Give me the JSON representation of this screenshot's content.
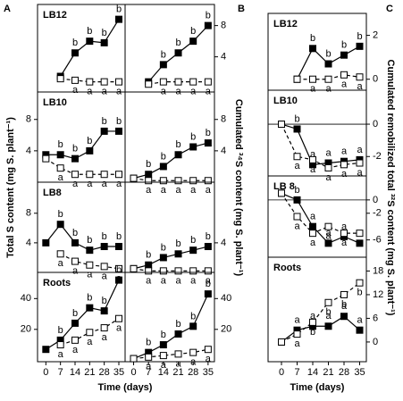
{
  "figure": {
    "panel_letters": [
      "A",
      "B",
      "C"
    ],
    "y_label_a": "Total S content (mg S. plant⁻¹)",
    "y_label_b": "Cumulated ³⁴S content (mg S. plant⁻¹)",
    "y_label_c": "Cumulated remobilized total ³²S content (mg S. plant⁻¹)",
    "x_label_a": "Time (days)",
    "x_label_c": "Time (days)"
  },
  "chart_data": [
    {
      "type": "line",
      "label": "LB12",
      "x": [
        0,
        7,
        14,
        21,
        28,
        35
      ],
      "xlim": [
        -4,
        38
      ],
      "ylim": [
        -0.5,
        10.7
      ],
      "yticks": [],
      "series": [
        {
          "marker": "filled",
          "color": "#000",
          "values": [
            null,
            1.5,
            4.5,
            6,
            5.8,
            8.8
          ],
          "letters": [
            null,
            null,
            "b",
            "b",
            "b",
            "b"
          ]
        },
        {
          "marker": "open",
          "color": "#000",
          "values": [
            null,
            1.2,
            1,
            0.8,
            0.8,
            0.8
          ],
          "letters": [
            null,
            null,
            "a",
            "a",
            "a",
            "a"
          ]
        }
      ]
    },
    {
      "type": "line",
      "label": "LB10",
      "x": [
        0,
        7,
        14,
        21,
        28,
        35
      ],
      "xlim": [
        -4,
        38
      ],
      "ylim": [
        0,
        11.5
      ],
      "yticks": [
        4,
        8
      ],
      "series": [
        {
          "marker": "filled",
          "color": "#000",
          "values": [
            3.5,
            3.5,
            3,
            4,
            6.5,
            6.5
          ],
          "letters": [
            null,
            "b",
            "b",
            "b",
            "b",
            "b"
          ]
        },
        {
          "marker": "open",
          "color": "#000",
          "values": [
            3,
            1.8,
            1,
            1,
            1,
            1
          ],
          "letters": [
            null,
            "a",
            "a",
            "a",
            "a",
            "a"
          ]
        }
      ]
    },
    {
      "type": "line",
      "label": "LB8",
      "x": [
        0,
        7,
        14,
        21,
        28,
        35
      ],
      "xlim": [
        -4,
        38
      ],
      "ylim": [
        0,
        12.2
      ],
      "yticks": [
        4,
        8
      ],
      "series": [
        {
          "marker": "filled",
          "color": "#000",
          "values": [
            4,
            6.5,
            4,
            3,
            3.5,
            3.5
          ],
          "letters": [
            null,
            "b",
            "b",
            "b",
            "b",
            "b"
          ]
        },
        {
          "marker": "open",
          "color": "#000",
          "values": [
            null,
            2.5,
            1.5,
            1,
            0.8,
            0.5
          ],
          "letters": [
            null,
            "a",
            "a",
            "a",
            "a",
            "a"
          ]
        }
      ]
    },
    {
      "type": "line",
      "label": "Roots",
      "x": [
        0,
        7,
        14,
        21,
        28,
        35
      ],
      "xlim": [
        -4,
        38
      ],
      "ylim": [
        -1,
        57
      ],
      "yticks": [
        20,
        40
      ],
      "xticks": [
        0,
        7,
        14,
        21,
        28,
        35
      ],
      "series": [
        {
          "marker": "filled",
          "color": "#000",
          "values": [
            7,
            13,
            24,
            34,
            32,
            52
          ],
          "letters": [
            null,
            "b",
            "b",
            "b",
            "b",
            "b"
          ]
        },
        {
          "marker": "open",
          "color": "#000",
          "values": [
            null,
            10,
            13,
            18,
            21,
            27
          ],
          "letters": [
            null,
            "a",
            "a",
            "a",
            "a",
            "a"
          ]
        }
      ]
    },
    {
      "type": "line",
      "x": [
        0,
        7,
        14,
        21,
        28,
        35
      ],
      "xlim": [
        -4,
        38
      ],
      "ylim": [
        -0.5,
        10.7
      ],
      "yticks": [
        4,
        8
      ],
      "series": [
        {
          "marker": "filled",
          "color": "#000",
          "values": [
            null,
            0.8,
            3,
            4.5,
            6,
            8
          ],
          "letters": [
            null,
            null,
            "b",
            "b",
            "b",
            "b"
          ]
        },
        {
          "marker": "open",
          "color": "#000",
          "values": [
            null,
            0.5,
            0.8,
            0.8,
            0.8,
            0.8
          ],
          "letters": [
            null,
            null,
            "a",
            "a",
            "a",
            "a"
          ]
        }
      ]
    },
    {
      "type": "line",
      "x": [
        0,
        7,
        14,
        21,
        28,
        35
      ],
      "xlim": [
        -4,
        38
      ],
      "ylim": [
        0,
        11.5
      ],
      "yticks": [
        4,
        8
      ],
      "series": [
        {
          "marker": "filled",
          "color": "#000",
          "values": [
            0.5,
            1,
            2,
            3.5,
            4.5,
            5
          ],
          "letters": [
            null,
            "b",
            "b",
            "b",
            "b",
            "b"
          ]
        },
        {
          "marker": "open",
          "color": "#000",
          "values": [
            0.5,
            0.2,
            0.2,
            0.2,
            0.2,
            0.2
          ],
          "letters": [
            null,
            "a",
            "a",
            "a",
            "a",
            "a"
          ]
        }
      ]
    },
    {
      "type": "line",
      "x": [
        0,
        7,
        14,
        21,
        28,
        35
      ],
      "xlim": [
        -4,
        38
      ],
      "ylim": [
        0,
        12.2
      ],
      "yticks": [
        4
      ],
      "series": [
        {
          "marker": "filled",
          "color": "#000",
          "values": [
            0.5,
            1,
            2,
            2.5,
            3,
            3.5
          ],
          "letters": [
            null,
            "b",
            "b",
            "b",
            "b",
            "b"
          ]
        },
        {
          "marker": "open",
          "color": "#000",
          "values": [
            0.5,
            0.2,
            0.2,
            0.2,
            0.2,
            0.2
          ],
          "letters": [
            null,
            "a",
            "a",
            "a",
            "a",
            "a"
          ]
        }
      ]
    },
    {
      "type": "line",
      "x": [
        0,
        7,
        14,
        21,
        28,
        35
      ],
      "xlim": [
        -4,
        38
      ],
      "ylim": [
        -1,
        57
      ],
      "yticks": [
        20,
        40
      ],
      "xticks": [
        0,
        7,
        14,
        21,
        28,
        35
      ],
      "series": [
        {
          "marker": "filled",
          "color": "#000",
          "values": [
            1,
            5,
            10,
            17,
            22,
            43
          ],
          "letters": [
            null,
            "b",
            "b",
            "b",
            "b",
            "b"
          ]
        },
        {
          "marker": "open",
          "color": "#000",
          "values": [
            1,
            2,
            3,
            4,
            5,
            7
          ],
          "letters": [
            null,
            "a",
            "a",
            "a",
            "a",
            "a"
          ]
        }
      ]
    },
    {
      "type": "line",
      "label": "LB12",
      "x": [
        0,
        7,
        14,
        21,
        28,
        35
      ],
      "xlim": [
        -6,
        38
      ],
      "ylim": [
        -0.5,
        3
      ],
      "yticks": [
        0,
        2
      ],
      "series": [
        {
          "marker": "filled",
          "color": "#000",
          "values": [
            null,
            0,
            1.4,
            0.7,
            1.1,
            1.5
          ],
          "letters": [
            null,
            null,
            "b",
            "b",
            "b",
            "b"
          ]
        },
        {
          "marker": "open",
          "color": "#000",
          "values": [
            null,
            0,
            0,
            0,
            0.2,
            0.1
          ],
          "letters": [
            null,
            null,
            "a",
            "a",
            "a",
            "a"
          ]
        }
      ]
    },
    {
      "type": "line",
      "label": "LB10",
      "x": [
        0,
        7,
        14,
        21,
        28,
        35
      ],
      "xlim": [
        -6,
        38
      ],
      "ylim": [
        -3.2,
        2.1
      ],
      "yticks": [
        -2,
        0
      ],
      "zero_line": true,
      "series": [
        {
          "marker": "filled",
          "color": "#000",
          "values": [
            0,
            -0.3,
            -2.5,
            -2.4,
            -2.3,
            -2.2
          ],
          "letters": [
            null,
            "b",
            "a",
            "a",
            "a",
            "a"
          ]
        },
        {
          "marker": "open",
          "color": "#000",
          "values": [
            0,
            -2,
            -2.2,
            -2.7,
            -2.5,
            -2.4
          ],
          "letters": [
            null,
            "a",
            "a",
            "a",
            "a",
            "a"
          ]
        }
      ]
    },
    {
      "type": "line",
      "label": "LB 8",
      "x": [
        0,
        7,
        14,
        21,
        28,
        35
      ],
      "xlim": [
        -6,
        38
      ],
      "ylim": [
        -8.6,
        3.6
      ],
      "yticks": [
        -6,
        -2,
        0
      ],
      "zero_line": true,
      "series": [
        {
          "marker": "filled",
          "color": "#000",
          "values": [
            1,
            0,
            -4,
            -6.5,
            -5.5,
            -6.5
          ],
          "letters": [
            null,
            "b",
            "a",
            "a",
            "a",
            "a"
          ]
        },
        {
          "marker": "open",
          "color": "#000",
          "values": [
            1,
            -2.5,
            -5,
            -4,
            -5,
            -5
          ],
          "letters": [
            null,
            "a",
            "a",
            "a",
            "a",
            "a"
          ]
        }
      ]
    },
    {
      "type": "line",
      "label": "Roots",
      "x": [
        0,
        7,
        14,
        21,
        28,
        35
      ],
      "xlim": [
        -6,
        38
      ],
      "ylim": [
        -5,
        21.5
      ],
      "yticks": [
        0,
        6,
        12,
        18
      ],
      "xticks": [
        0,
        7,
        14,
        21,
        28,
        35
      ],
      "series": [
        {
          "marker": "filled",
          "color": "#000",
          "values": [
            0,
            3,
            4,
            4,
            6.5,
            3
          ],
          "letters": [
            null,
            "a",
            "a",
            "a",
            "a",
            "a"
          ]
        },
        {
          "marker": "open",
          "color": "#000",
          "values": [
            0,
            2,
            5,
            10,
            12,
            15
          ],
          "letters": [
            null,
            "a",
            "b",
            "b",
            "b",
            "b"
          ]
        }
      ]
    }
  ]
}
